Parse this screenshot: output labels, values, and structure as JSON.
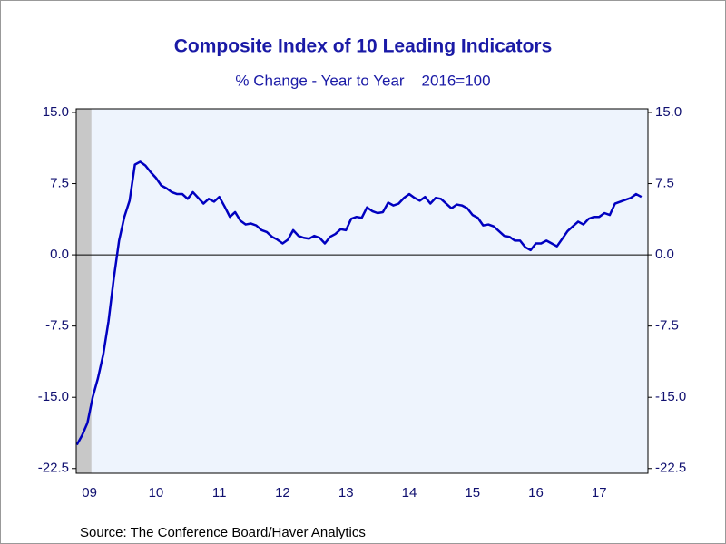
{
  "chart_data": {
    "type": "line",
    "title": "Composite Index of 10 Leading Indicators",
    "subtitle": "% Change - Year to Year    2016=100",
    "source": "Source:  The Conference Board/Haver Analytics",
    "x": [
      2009.25,
      2009.333,
      2009.417,
      2009.5,
      2009.583,
      2009.667,
      2009.75,
      2009.833,
      2009.917,
      2010,
      2010.083,
      2010.167,
      2010.25,
      2010.333,
      2010.417,
      2010.5,
      2010.583,
      2010.667,
      2010.75,
      2010.833,
      2010.917,
      2011,
      2011.083,
      2011.167,
      2011.25,
      2011.333,
      2011.417,
      2011.5,
      2011.583,
      2011.667,
      2011.75,
      2011.833,
      2011.917,
      2012,
      2012.083,
      2012.167,
      2012.25,
      2012.333,
      2012.417,
      2012.5,
      2012.583,
      2012.667,
      2012.75,
      2012.833,
      2012.917,
      2013,
      2013.083,
      2013.167,
      2013.25,
      2013.333,
      2013.417,
      2013.5,
      2013.583,
      2013.667,
      2013.75,
      2013.833,
      2013.917,
      2014,
      2014.083,
      2014.167,
      2014.25,
      2014.333,
      2014.417,
      2014.5,
      2014.583,
      2014.667,
      2014.75,
      2014.833,
      2014.917,
      2015,
      2015.083,
      2015.167,
      2015.25,
      2015.333,
      2015.417,
      2015.5,
      2015.583,
      2015.667,
      2015.75,
      2015.833,
      2015.917,
      2016,
      2016.083,
      2016.167,
      2016.25,
      2016.333,
      2016.417,
      2016.5,
      2016.583,
      2016.667,
      2016.75,
      2016.833,
      2016.917,
      2017,
      2017.083,
      2017.167,
      2017.25,
      2017.333,
      2017.417,
      2017.5,
      2017.583,
      2017.667,
      2017.75,
      2017.833,
      2017.917,
      2018,
      2018.083,
      2018.167
    ],
    "series": [
      {
        "color": "#0000c0",
        "values": [
          -20,
          -19,
          -17.7,
          -15,
          -13,
          -10.5,
          -7,
          -2.5,
          1.5,
          4,
          5.7,
          9.5,
          9.8,
          9.4,
          8.7,
          8.1,
          7.3,
          7.0,
          6.6,
          6.4,
          6.4,
          5.9,
          6.6,
          6.0,
          5.4,
          5.9,
          5.6,
          6.1,
          5.1,
          4.0,
          4.5,
          3.6,
          3.2,
          3.3,
          3.1,
          2.6,
          2.4,
          1.9,
          1.6,
          1.2,
          1.6,
          2.6,
          2.0,
          1.8,
          1.7,
          2.0,
          1.8,
          1.2,
          1.9,
          2.2,
          2.7,
          2.6,
          3.8,
          4.0,
          3.9,
          5.0,
          4.6,
          4.4,
          4.5,
          5.5,
          5.2,
          5.4,
          6.0,
          6.4,
          6.0,
          5.7,
          6.1,
          5.4,
          6.0,
          5.9,
          5.4,
          4.9,
          5.3,
          5.2,
          4.9,
          4.2,
          3.9,
          3.1,
          3.2,
          3.0,
          2.5,
          2.0,
          1.9,
          1.5,
          1.5,
          0.8,
          0.5,
          1.2,
          1.2,
          1.5,
          1.2,
          0.9,
          1.7,
          2.5,
          3.0,
          3.5,
          3.2,
          3.8,
          4.0,
          4.0,
          4.4,
          4.2,
          5.4,
          5.6,
          5.8,
          6.0,
          6.4,
          6.1
        ]
      }
    ],
    "xlim": [
      2009.24,
      2018.27
    ],
    "xticks": [
      {
        "value": 2009.45,
        "label": "09"
      },
      {
        "value": 2010.5,
        "label": "10"
      },
      {
        "value": 2011.5,
        "label": "11"
      },
      {
        "value": 2012.5,
        "label": "12"
      },
      {
        "value": 2013.5,
        "label": "13"
      },
      {
        "value": 2014.5,
        "label": "14"
      },
      {
        "value": 2015.5,
        "label": "15"
      },
      {
        "value": 2016.5,
        "label": "16"
      },
      {
        "value": 2017.5,
        "label": "17"
      }
    ],
    "ylim": [
      -23,
      15.38
    ],
    "yticks": [
      -22.5,
      {
        "value": -15,
        "label": "-15.0"
      },
      -7.5,
      {
        "value": 0,
        "label": "0.0"
      },
      7.5,
      {
        "value": 15,
        "label": "15.0"
      }
    ],
    "y2lim": [
      -23,
      15.38
    ],
    "y2ticks": [
      -22.5,
      {
        "value": -15,
        "label": "-15.0"
      },
      -7.5,
      {
        "value": 0,
        "label": "0.0"
      },
      7.5,
      {
        "value": 15,
        "label": "15.0"
      }
    ],
    "shaded_regions": [
      [
        2009.24,
        2009.48
      ]
    ]
  }
}
